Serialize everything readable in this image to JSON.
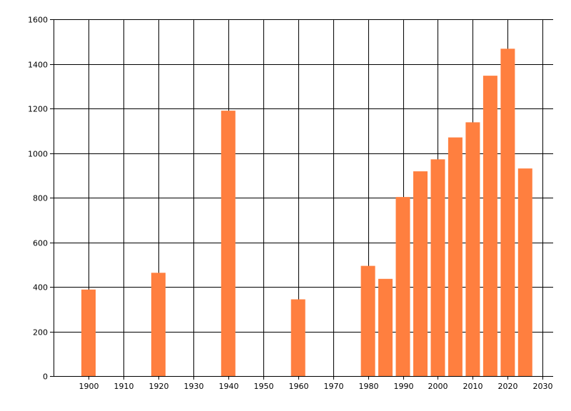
{
  "chart_data": {
    "type": "bar",
    "x": [
      1900,
      1920,
      1940,
      1960,
      1980,
      1985,
      1990,
      1995,
      2000,
      2005,
      2010,
      2015,
      2020,
      2025
    ],
    "values": [
      388,
      463,
      1190,
      344,
      494,
      436,
      803,
      918,
      972,
      1070,
      1138,
      1347,
      1468,
      931
    ],
    "xlim": [
      1890,
      2033
    ],
    "ylim": [
      0,
      1600
    ],
    "xticks": [
      1900,
      1910,
      1920,
      1930,
      1940,
      1950,
      1960,
      1970,
      1980,
      1990,
      2000,
      2010,
      2020,
      2030
    ],
    "yticks": [
      0,
      200,
      400,
      600,
      800,
      1000,
      1200,
      1400,
      1600
    ],
    "bar_color": "#ff7f3f",
    "grid": true
  }
}
